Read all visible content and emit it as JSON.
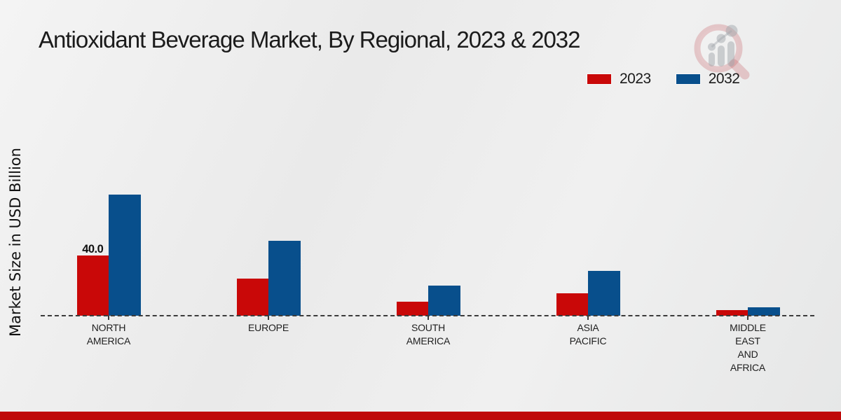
{
  "page": {
    "title": "Antioxidant Beverage Market, By Regional, 2023 & 2032"
  },
  "axis": {
    "ylabel": "Market Size in USD Billion"
  },
  "legend": {
    "items": [
      {
        "label": "2023",
        "color": "#c90808"
      },
      {
        "label": "2032",
        "color": "#084f8c"
      }
    ]
  },
  "colors": {
    "series_2023": "#c90808",
    "series_2032": "#084f8c",
    "footer_strip": "#bf0a0a",
    "baseline": "#3b3b3b"
  },
  "watermark": {
    "name": "magnifier-bar-chart-logo"
  },
  "chart_data": {
    "type": "bar",
    "title": "Antioxidant Beverage Market, By Regional, 2023 & 2032",
    "xlabel": "",
    "ylabel": "Market Size in USD Billion",
    "categories": [
      "NORTH AMERICA",
      "EUROPE",
      "SOUTH AMERICA",
      "ASIA PACIFIC",
      "MIDDLE EAST AND AFRICA"
    ],
    "series": [
      {
        "name": "2023",
        "color": "#c90808",
        "values": [
          40.0,
          24.4,
          9.3,
          14.6,
          3.5
        ]
      },
      {
        "name": "2032",
        "color": "#084f8c",
        "values": [
          80.0,
          49.7,
          19.7,
          29.6,
          5.5
        ]
      }
    ],
    "bar_labels": [
      {
        "series_index": 0,
        "category_index": 0,
        "text": "40.0"
      }
    ],
    "ylim": [
      0,
      85
    ],
    "grid": false,
    "baseline_style": "dashed",
    "legend_position": "top-right"
  }
}
